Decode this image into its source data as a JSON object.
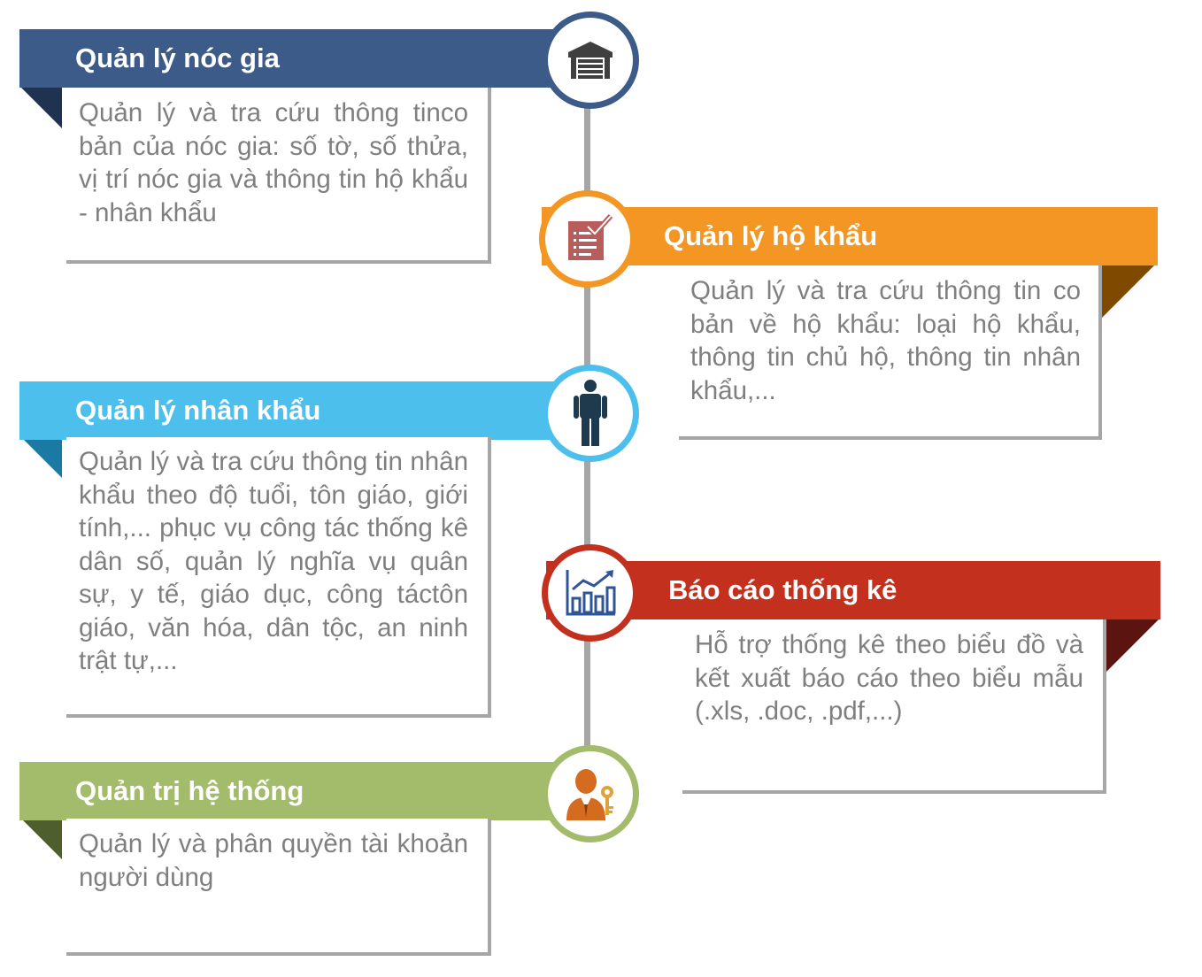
{
  "colors": {
    "noc_gia": "#3c5b88",
    "ho_khau": "#f39624",
    "nhan_khau": "#4dbfed",
    "bao_cao": "#c3311e",
    "quan_tri": "#a3bc6b",
    "line": "#a6a6a6",
    "text": "#7f7f7f"
  },
  "items": [
    {
      "title": "Quản lý nóc gia",
      "description": "Quản lý và tra cứu thông tinco bản của nóc gia: số tờ, số thửa, vị trí nóc gia và thông tin hộ khẩu - nhân khẩu",
      "icon": "garage-icon"
    },
    {
      "title": "Quản lý hộ khẩu",
      "description": "Quản lý và tra cứu thông tin co bản về hộ khẩu: loại hộ khẩu, thông tin chủ hộ, thông tin nhân khẩu,...",
      "icon": "checklist-icon"
    },
    {
      "title": "Quản lý nhân khẩu",
      "description": "Quản lý và tra cứu thông tin nhân khẩu theo độ tuổi, tôn giáo, giới tính,... phục vụ công tác thống kê dân số, quản lý nghĩa vụ quân sự, y tế, giáo dục, công táctôn giáo, văn hóa, dân tộc, an ninh trật tự,...",
      "icon": "person-icon"
    },
    {
      "title": "Báo cáo thống kê",
      "description": "Hỗ trợ thống kê theo biểu đồ và kết xuất báo cáo theo biểu mẫu (.xls, .doc, .pdf,...)",
      "icon": "bar-chart-icon"
    },
    {
      "title": "Quản trị hệ thống",
      "description": "Quản lý và phân quyền tài khoản người dùng",
      "icon": "admin-key-icon"
    }
  ]
}
